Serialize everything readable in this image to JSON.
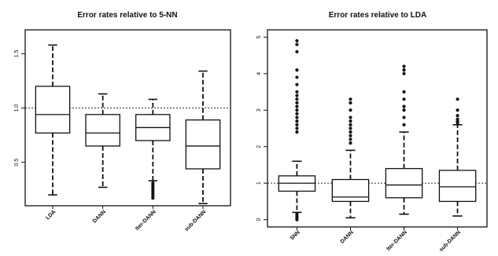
{
  "chart_data": [
    {
      "type": "boxplot",
      "title": "Error rates relative to 5-NN",
      "xlabel": "",
      "ylabel": "",
      "ylim": [
        0.1,
        1.72
      ],
      "yticks": [
        0.5,
        1.0,
        1.5
      ],
      "ytick_labels": [
        "0.5",
        "1.0",
        "1.5"
      ],
      "reference_line": 1.0,
      "categories": [
        "LDA",
        "DANN",
        "Iter-DANN",
        "sub-DANN"
      ],
      "boxes": [
        {
          "name": "LDA",
          "whisker_low": 0.2,
          "q1": 0.77,
          "median": 0.94,
          "q3": 1.2,
          "whisker_high": 1.58,
          "outliers": []
        },
        {
          "name": "DANN",
          "whisker_low": 0.27,
          "q1": 0.65,
          "median": 0.77,
          "q3": 0.94,
          "whisker_high": 1.13,
          "outliers": []
        },
        {
          "name": "Iter-DANN",
          "whisker_low": 0.33,
          "q1": 0.7,
          "median": 0.82,
          "q3": 0.94,
          "whisker_high": 1.08,
          "outliers": [
            0.17,
            0.19,
            0.21,
            0.23,
            0.25,
            0.27,
            0.29,
            0.31
          ]
        },
        {
          "name": "sub-DANN",
          "whisker_low": 0.12,
          "q1": 0.44,
          "median": 0.65,
          "q3": 0.89,
          "whisker_high": 1.34,
          "outliers": []
        }
      ]
    },
    {
      "type": "boxplot",
      "title": "Error rates relative to LDA",
      "xlabel": "",
      "ylabel": "",
      "ylim": [
        -0.2,
        5.2
      ],
      "yticks": [
        0,
        1,
        2,
        3,
        4,
        5
      ],
      "ytick_labels": [
        "0",
        "1",
        "2",
        "3",
        "4",
        "5"
      ],
      "reference_line": 1.0,
      "categories": [
        "5NN",
        "DANN",
        "Iter-DANN",
        "sub-DANN"
      ],
      "boxes": [
        {
          "name": "5NN",
          "whisker_low": 0.2,
          "q1": 0.78,
          "median": 1.0,
          "q3": 1.2,
          "whisker_high": 1.6,
          "outliers": [
            0.0,
            0.05,
            0.1,
            0.15,
            2.4,
            2.5,
            2.6,
            2.7,
            2.8,
            2.9,
            3.0,
            3.1,
            3.2,
            3.3,
            3.4,
            3.5,
            3.7,
            3.9,
            4.1,
            4.6,
            4.8,
            4.9
          ]
        },
        {
          "name": "DANN",
          "whisker_low": 0.05,
          "q1": 0.5,
          "median": 0.62,
          "q3": 1.1,
          "whisker_high": 1.9,
          "outliers": [
            2.1,
            2.2,
            2.3,
            2.4,
            2.5,
            2.6,
            2.7,
            2.8,
            3.0,
            3.2,
            3.3
          ]
        },
        {
          "name": "Iter-DANN",
          "whisker_low": 0.15,
          "q1": 0.6,
          "median": 0.95,
          "q3": 1.4,
          "whisker_high": 2.4,
          "outliers": [
            2.6,
            2.8,
            3.0,
            3.1,
            3.3,
            3.5,
            4.0,
            4.1,
            4.2
          ]
        },
        {
          "name": "sub-DANN",
          "whisker_low": 0.1,
          "q1": 0.5,
          "median": 0.9,
          "q3": 1.35,
          "whisker_high": 2.6,
          "outliers": [
            2.65,
            2.7,
            2.75,
            2.85,
            3.0,
            3.3
          ]
        }
      ]
    }
  ]
}
